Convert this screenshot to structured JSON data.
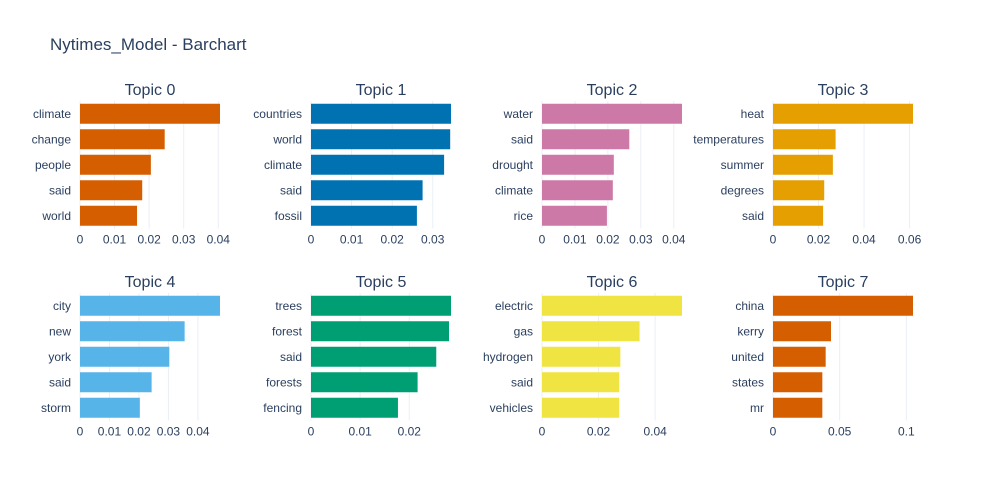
{
  "title": "Nytimes_Model - Barchart",
  "chart_data": [
    {
      "type": "bar",
      "orientation": "horizontal",
      "title": "Topic 0",
      "color": "#D55E00",
      "categories": [
        "climate",
        "change",
        "people",
        "said",
        "world"
      ],
      "values": [
        0.0405,
        0.0245,
        0.0205,
        0.018,
        0.0165
      ],
      "xlim": [
        0,
        0.0405
      ],
      "xticks": [
        0,
        0.01,
        0.02,
        0.03,
        0.04
      ],
      "xtick_labels": [
        "0",
        "0.01",
        "0.02",
        "0.03",
        "0.04"
      ],
      "grid": true
    },
    {
      "type": "bar",
      "orientation": "horizontal",
      "title": "Topic 1",
      "color": "#0072B2",
      "categories": [
        "countries",
        "world",
        "climate",
        "said",
        "fossil"
      ],
      "values": [
        0.0345,
        0.0343,
        0.0328,
        0.0275,
        0.0261
      ],
      "xlim": [
        0,
        0.0345
      ],
      "xticks": [
        0,
        0.01,
        0.02,
        0.03
      ],
      "xtick_labels": [
        "0",
        "0.01",
        "0.02",
        "0.03"
      ],
      "grid": true
    },
    {
      "type": "bar",
      "orientation": "horizontal",
      "title": "Topic 2",
      "color": "#CC79A7",
      "categories": [
        "water",
        "said",
        "drought",
        "climate",
        "rice"
      ],
      "values": [
        0.0425,
        0.0265,
        0.0218,
        0.0215,
        0.0197
      ],
      "xlim": [
        0,
        0.0425
      ],
      "xticks": [
        0,
        0.01,
        0.02,
        0.03,
        0.04
      ],
      "xtick_labels": [
        "0",
        "0.01",
        "0.02",
        "0.03",
        "0.04"
      ],
      "grid": true
    },
    {
      "type": "bar",
      "orientation": "horizontal",
      "title": "Topic 3",
      "color": "#E69F00",
      "categories": [
        "heat",
        "temperatures",
        "summer",
        "degrees",
        "said"
      ],
      "values": [
        0.0615,
        0.0275,
        0.0263,
        0.0225,
        0.022
      ],
      "xlim": [
        0,
        0.0615
      ],
      "xticks": [
        0,
        0.02,
        0.04,
        0.06
      ],
      "xtick_labels": [
        "0",
        "0.02",
        "0.04",
        "0.06"
      ],
      "grid": true
    },
    {
      "type": "bar",
      "orientation": "horizontal",
      "title": "Topic 4",
      "color": "#56B4E9",
      "categories": [
        "city",
        "new",
        "york",
        "said",
        "storm"
      ],
      "values": [
        0.0475,
        0.0355,
        0.0303,
        0.0243,
        0.0203
      ],
      "xlim": [
        0,
        0.0475
      ],
      "xticks": [
        0,
        0.01,
        0.02,
        0.03,
        0.04
      ],
      "xtick_labels": [
        "0",
        "0.01",
        "0.02",
        "0.03",
        "0.04"
      ],
      "grid": true
    },
    {
      "type": "bar",
      "orientation": "horizontal",
      "title": "Topic 5",
      "color": "#009E73",
      "categories": [
        "trees",
        "forest",
        "said",
        "forests",
        "fencing"
      ],
      "values": [
        0.0285,
        0.0281,
        0.0255,
        0.0217,
        0.0177
      ],
      "xlim": [
        0,
        0.0285
      ],
      "xticks": [
        0,
        0.01,
        0.02
      ],
      "xtick_labels": [
        "0",
        "0.01",
        "0.02"
      ],
      "grid": true
    },
    {
      "type": "bar",
      "orientation": "horizontal",
      "title": "Topic 6",
      "color": "#F0E442",
      "categories": [
        "electric",
        "gas",
        "hydrogen",
        "said",
        "vehicles"
      ],
      "values": [
        0.0495,
        0.0345,
        0.0277,
        0.0273,
        0.0273
      ],
      "xlim": [
        0,
        0.0495
      ],
      "xticks": [
        0,
        0.02,
        0.04
      ],
      "xtick_labels": [
        "0",
        "0.02",
        "0.04"
      ],
      "grid": true
    },
    {
      "type": "bar",
      "orientation": "horizontal",
      "title": "Topic 7",
      "color": "#D55E00",
      "categories": [
        "china",
        "kerry",
        "united",
        "states",
        "mr"
      ],
      "values": [
        0.105,
        0.0435,
        0.0395,
        0.037,
        0.037
      ],
      "xlim": [
        0,
        0.105
      ],
      "xticks": [
        0,
        0.05,
        0.1
      ],
      "xtick_labels": [
        "0",
        "0.05",
        "0.1"
      ],
      "grid": true
    }
  ]
}
